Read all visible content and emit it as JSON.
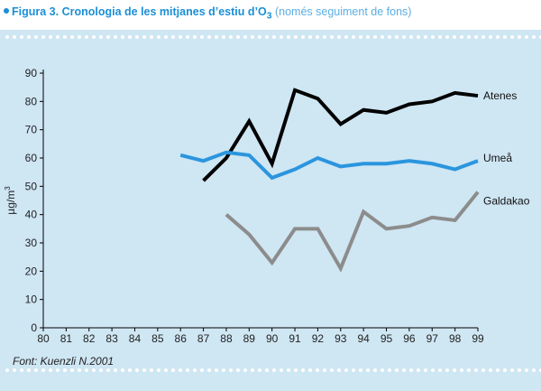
{
  "figure": {
    "label": "Figura 3.",
    "title_main": "Cronologia de les mitjanes d’estiu d’O",
    "title_subscript": "3",
    "title_note": "(només seguiment de fons)",
    "source": "Font: Kuenzli N.2001"
  },
  "chart_data": {
    "type": "line",
    "ylabel": "µg/m",
    "ylabel_superscript": "3",
    "xlim": [
      80,
      99
    ],
    "ylim": [
      0,
      90
    ],
    "x_ticks": [
      "80",
      "81",
      "82",
      "83",
      "84",
      "85",
      "86",
      "87",
      "88",
      "89",
      "90",
      "91",
      "92",
      "93",
      "94",
      "95",
      "96",
      "97",
      "98",
      "99"
    ],
    "y_ticks": [
      0,
      10,
      20,
      30,
      40,
      50,
      60,
      70,
      80,
      90
    ],
    "grid": false,
    "series": [
      {
        "name": "Atenes",
        "color": "#000000",
        "x": [
          87,
          88,
          89,
          90,
          91,
          92,
          93,
          94,
          95,
          96,
          97,
          98,
          99
        ],
        "values": [
          52,
          60,
          73,
          58,
          84,
          81,
          72,
          77,
          76,
          79,
          80,
          83,
          82
        ]
      },
      {
        "name": "Umeå",
        "color": "#2b95de",
        "x": [
          86,
          87,
          88,
          89,
          90,
          91,
          92,
          93,
          94,
          95,
          96,
          97,
          98,
          99
        ],
        "values": [
          61,
          59,
          62,
          61,
          53,
          56,
          60,
          57,
          58,
          58,
          59,
          58,
          56,
          59
        ]
      },
      {
        "name": "Galdakao",
        "color": "#8c8c8c",
        "x": [
          88,
          89,
          90,
          91,
          92,
          93,
          94,
          95,
          96,
          97,
          98,
          99
        ],
        "values": [
          40,
          33,
          23,
          35,
          35,
          21,
          41,
          35,
          36,
          39,
          38,
          48
        ]
      }
    ]
  }
}
